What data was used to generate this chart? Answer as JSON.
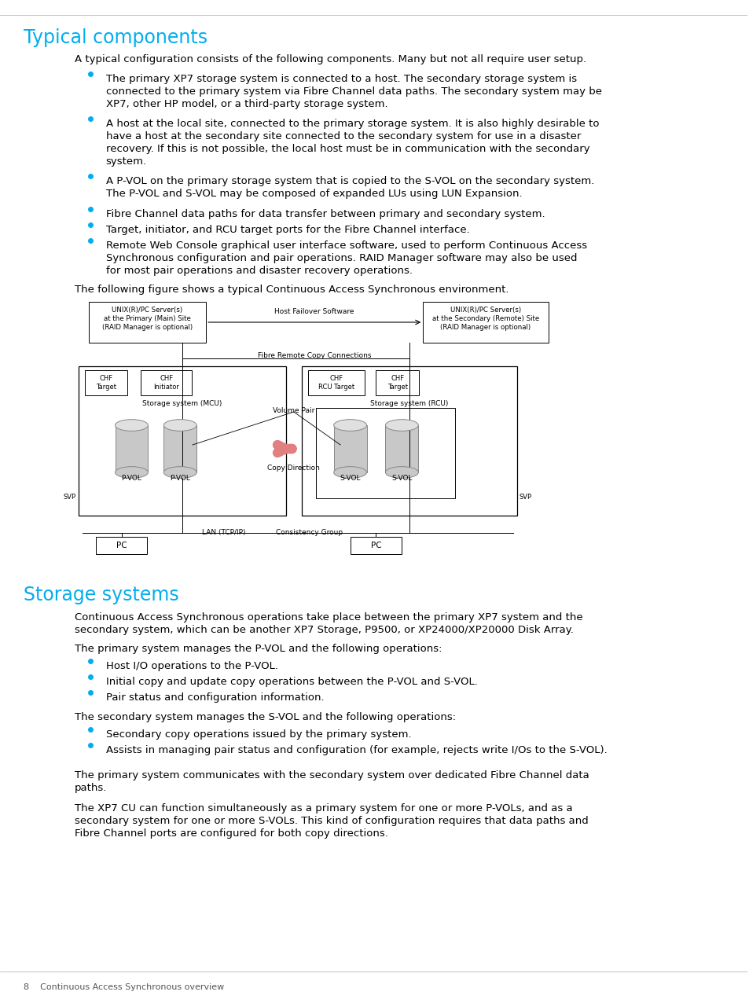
{
  "title1": "Typical components",
  "title2": "Storage systems",
  "title_color": "#00AEEF",
  "body_color": "#000000",
  "bg_color": "#ffffff",
  "para1": "A typical configuration consists of the following components. Many but not all require user setup.",
  "bullets1": [
    "The primary XP7 storage system is connected to a host. The secondary storage system is\nconnected to the primary system via Fibre Channel data paths. The secondary system may be\nXP7, other HP model, or a third-party storage system.",
    "A host at the local site, connected to the primary storage system. It is also highly desirable to\nhave a host at the secondary site connected to the secondary system for use in a disaster\nrecovery. If this is not possible, the local host must be in communication with the secondary\nsystem.",
    "A P-VOL on the primary storage system that is copied to the S-VOL on the secondary system.\nThe P-VOL and S-VOL may be composed of expanded LUs using LUN Expansion.",
    "Fibre Channel data paths for data transfer between primary and secondary system.",
    "Target, initiator, and RCU target ports for the Fibre Channel interface.",
    "Remote Web Console graphical user interface software, used to perform Continuous Access\nSynchronous configuration and pair operations. RAID Manager software may also be used\nfor most pair operations and disaster recovery operations."
  ],
  "para2": "The following figure shows a typical Continuous Access Synchronous environment.",
  "para3": "Continuous Access Synchronous operations take place between the primary XP7 system and the\nsecondary system, which can be another XP7 Storage, P9500, or XP24000/XP20000 Disk Array.",
  "para4": "The primary system manages the P-VOL and the following operations:",
  "bullets2": [
    "Host I/O operations to the P-VOL.",
    "Initial copy and update copy operations between the P-VOL and S-VOL.",
    "Pair status and configuration information."
  ],
  "para5": "The secondary system manages the S-VOL and the following operations:",
  "bullets3": [
    "Secondary copy operations issued by the primary system.",
    "Assists in managing pair status and configuration (for example, rejects write I/Os to the S-VOL)."
  ],
  "para6": "The primary system communicates with the secondary system over dedicated Fibre Channel data\npaths.",
  "para7": "The XP7 CU can function simultaneously as a primary system for one or more P-VOLs, and as a\nsecondary system for one or more S-VOLs. This kind of configuration requires that data paths and\nFibre Channel ports are configured for both copy directions.",
  "footer": "8    Continuous Access Synchronous overview",
  "bullet_color": "#00AEEF"
}
